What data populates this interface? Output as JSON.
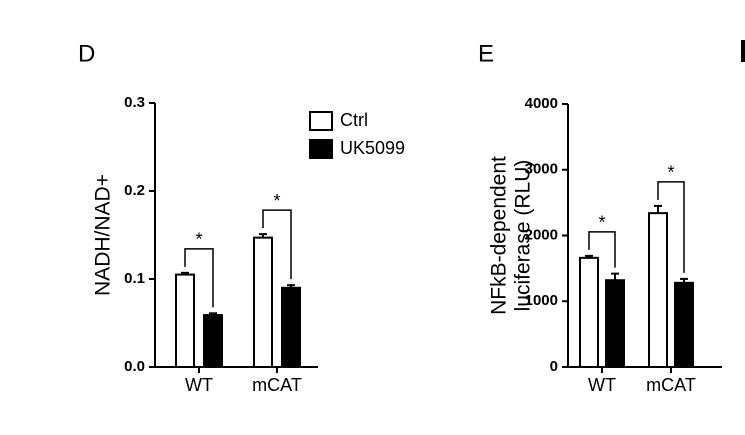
{
  "chart_data": [
    {
      "type": "bar",
      "panel": "D",
      "ylabel": [
        "NADH/NAD+"
      ],
      "categories": [
        "WT",
        "mCAT"
      ],
      "series": [
        {
          "name": "Ctrl",
          "color": "#ffffff",
          "values": [
            0.105,
            0.147
          ],
          "errors": [
            0.002,
            0.004
          ]
        },
        {
          "name": "UK5099",
          "color": "#000000",
          "values": [
            0.059,
            0.09
          ],
          "errors": [
            0.002,
            0.003
          ]
        }
      ],
      "annotations": [
        "*",
        "*"
      ],
      "ylim": [
        0,
        0.3
      ],
      "yticks": [
        {
          "value": 0,
          "label": "0.0"
        },
        0.1,
        0.2,
        0.3
      ],
      "legend": "upper right"
    },
    {
      "type": "bar",
      "panel": "E",
      "ylabel": [
        "NFkB-dependent",
        "luciferase (RLU)"
      ],
      "categories": [
        "WT",
        "mCAT"
      ],
      "series": [
        {
          "color": "#ffffff",
          "values": [
            1660,
            2340
          ],
          "errors": [
            30,
            110
          ]
        },
        {
          "color": "#000000",
          "values": [
            1320,
            1280
          ],
          "errors": [
            100,
            60
          ]
        }
      ],
      "annotations": [
        "*",
        "*"
      ],
      "ylim": [
        0,
        4000
      ],
      "yticks": [
        0,
        1000,
        2000,
        3000,
        4000
      ]
    }
  ]
}
